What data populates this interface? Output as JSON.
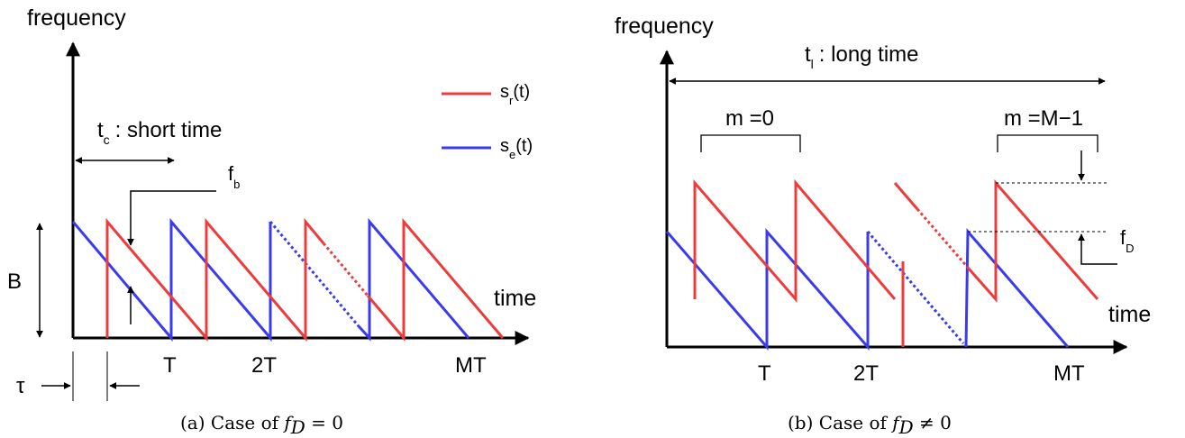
{
  "colors": {
    "received": "#ee3b3b",
    "emitted": "#3b3bee",
    "axis": "#000000"
  },
  "panel_a": {
    "y_axis_label": "frequency",
    "x_axis_label": "time",
    "legend": {
      "received_main": "s",
      "received_sub": "r",
      "received_tail": "(t)",
      "emitted_main": "s",
      "emitted_sub": "e",
      "emitted_tail": "(t)"
    },
    "tc_main": "t",
    "tc_sub": "c",
    "tc_text": ": short time",
    "fb_main": "f",
    "fb_sub": "b",
    "bandwidth_label": "B",
    "tau_label": "τ",
    "tick_T": "T",
    "tick_2T": "2T",
    "tick_MT": "MT",
    "caption_prefix": "(a) Case of ",
    "caption_f": "f",
    "caption_sub": "D",
    "caption_rel": " = 0"
  },
  "panel_b": {
    "y_axis_label": "frequency",
    "x_axis_label": "time",
    "tl_main": "t",
    "tl_sub": "l",
    "tl_text": ": long time",
    "m0_label": "m =0",
    "mM_label": "m =M−1",
    "fD_main": "f",
    "fD_sub": "D",
    "tick_T": "T",
    "tick_2T": "2T",
    "tick_MT": "MT",
    "caption_prefix": "(b) Case of ",
    "caption_f": "f",
    "caption_sub": "D",
    "caption_rel": " ≠ 0"
  }
}
